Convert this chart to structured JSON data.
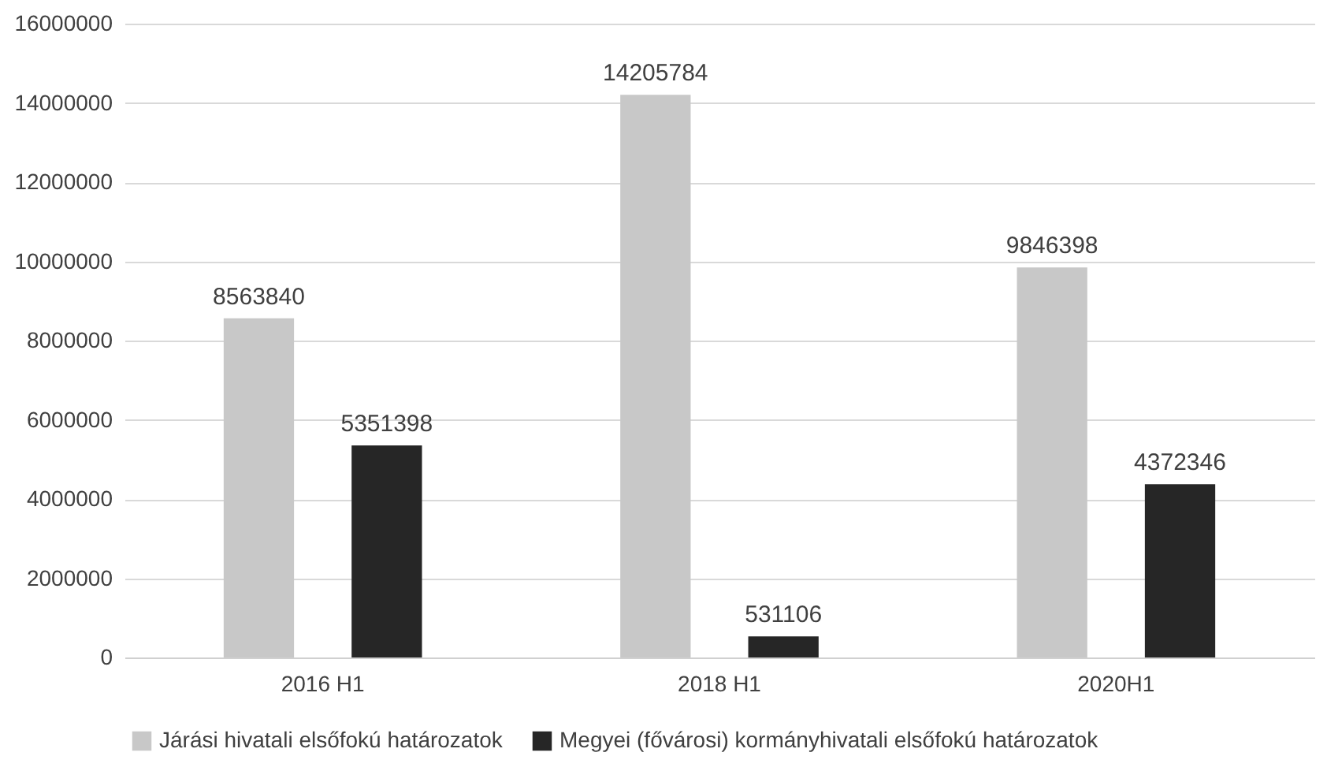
{
  "chart_data": {
    "type": "bar",
    "categories": [
      "2016 H1",
      "2018 H1",
      "2020H1"
    ],
    "series": [
      {
        "name": "Járási hivatali elsőfokú határozatok",
        "color": "#c8c8c8",
        "values": [
          8563840,
          14205784,
          9846398
        ]
      },
      {
        "name": "Megyei (fővárosi) kormányhivatali elsőfokú határozatok",
        "color": "#262626",
        "values": [
          5351398,
          531106,
          4372346
        ]
      }
    ],
    "ylim": [
      0,
      16000000
    ],
    "yticks": [
      0,
      2000000,
      4000000,
      6000000,
      8000000,
      10000000,
      12000000,
      14000000,
      16000000
    ],
    "grid": "y",
    "legend": "bottom",
    "data_labels": true
  }
}
